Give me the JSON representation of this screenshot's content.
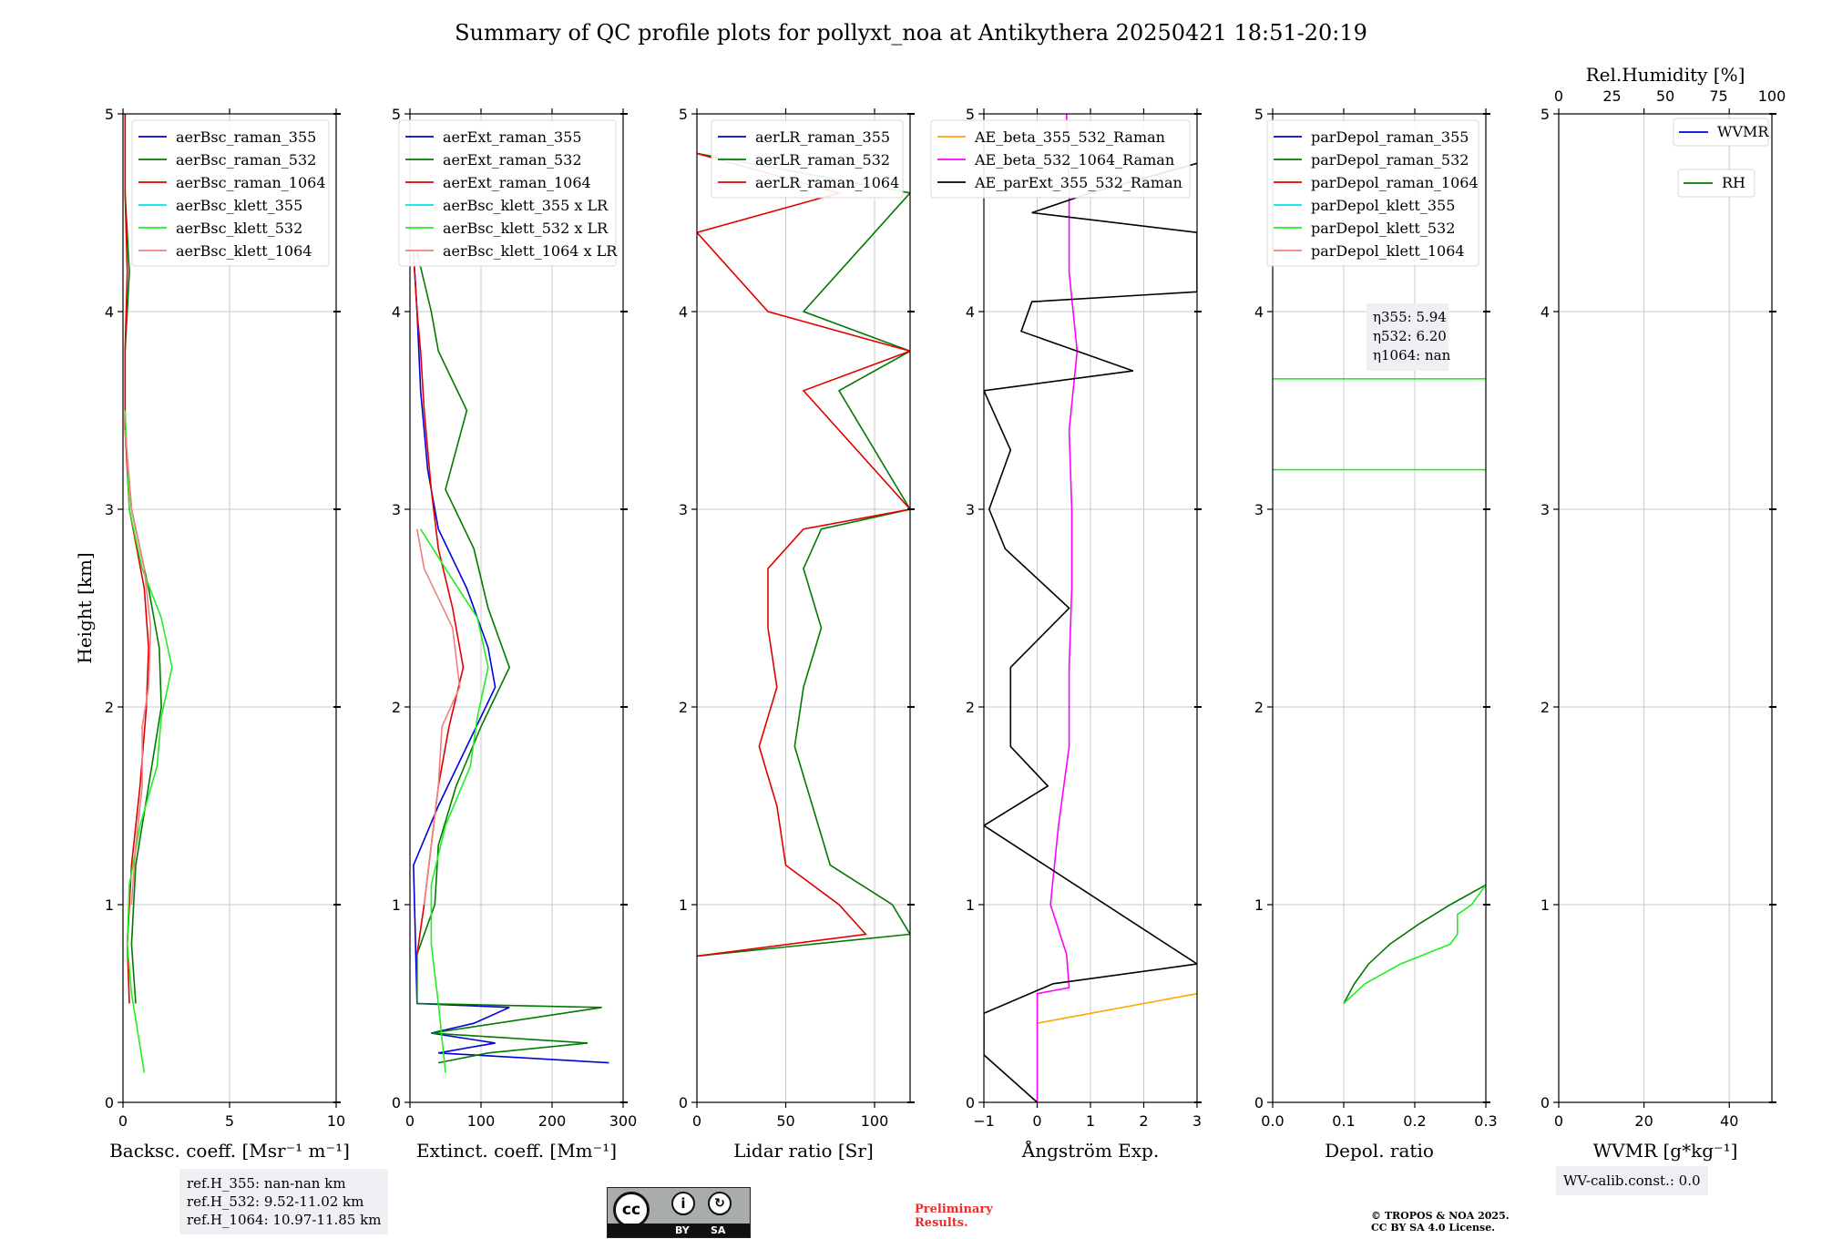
{
  "page": {
    "title": "Summary of QC profile plots for pollyxt_noa at Antikythera 20250421 18:51-20:19"
  },
  "notes": {
    "ref_h": [
      "ref.H_355: nan-nan km",
      "ref.H_532: 9.52-11.02 km",
      "ref.H_1064: 10.97-11.85 km"
    ],
    "wv_calib": "WV-calib.const.: 0.0",
    "license_by": "BY",
    "license_sa": "SA",
    "prelim_line1": "Preliminary",
    "prelim_line2": "Results.",
    "copyright_line1": "© TROPOS & NOA 2025.",
    "copyright_line2": "CC BY SA 4.0 License."
  },
  "colors": {
    "c355": "#0000dd",
    "c532": "#007a00",
    "c1064": "#e00000",
    "klett355": "#00e5e5",
    "klett532": "#22ee22",
    "klett1064": "#f08080",
    "ae_orange": "#ffa500",
    "ae_magenta": "#ff00ff",
    "ae_black": "#000000",
    "grid": "#c8c8c8"
  },
  "chart_data": [
    {
      "type": "line",
      "id": "backscatter",
      "xlabel": "Backsc. coeff. [Msr⁻¹ m⁻¹]",
      "ylabel": "Height [km]",
      "xlim": [
        0,
        10
      ],
      "ylim": [
        0,
        5
      ],
      "xticks": [
        0,
        5,
        10
      ],
      "yticks": [
        0,
        1,
        2,
        3,
        4,
        5
      ],
      "legend": "top-right",
      "series": [
        {
          "name": "aerBsc_raman_355",
          "color": "#0000dd",
          "y": [],
          "x": []
        },
        {
          "name": "aerBsc_raman_532",
          "color": "#007a00",
          "y": [
            0.5,
            0.8,
            1.2,
            1.6,
            2.0,
            2.3,
            2.6,
            3.0,
            3.4,
            3.8,
            4.2,
            4.6,
            5.0
          ],
          "x": [
            0.6,
            0.4,
            0.6,
            1.2,
            1.8,
            1.7,
            1.2,
            0.4,
            0.1,
            0.1,
            0.3,
            0.1,
            0.1
          ]
        },
        {
          "name": "aerBsc_raman_1064",
          "color": "#e00000",
          "y": [
            0.5,
            0.8,
            1.2,
            1.6,
            2.0,
            2.3,
            2.6,
            3.0,
            3.4,
            3.8,
            4.2,
            4.6,
            5.0
          ],
          "x": [
            0.3,
            0.2,
            0.4,
            0.8,
            1.1,
            1.2,
            1.0,
            0.3,
            0.1,
            0.1,
            0.2,
            0.1,
            0.1
          ]
        },
        {
          "name": "aerBsc_klett_355",
          "color": "#00e5e5",
          "y": [],
          "x": []
        },
        {
          "name": "aerBsc_klett_532",
          "color": "#22ee22",
          "y": [
            0.15,
            0.35,
            0.55,
            0.8,
            1.1,
            1.4,
            1.7,
            1.95,
            2.2,
            2.45,
            2.7,
            3.0,
            3.5
          ],
          "x": [
            1.0,
            0.7,
            0.4,
            0.2,
            0.3,
            0.8,
            1.6,
            1.8,
            2.3,
            1.8,
            0.9,
            0.3,
            0.1
          ]
        },
        {
          "name": "aerBsc_klett_1064",
          "color": "#f08080",
          "y": [
            1.0,
            1.3,
            1.6,
            1.9,
            2.1,
            2.4,
            2.7,
            3.0,
            3.4
          ],
          "x": [
            0.4,
            0.6,
            0.9,
            0.9,
            1.2,
            1.3,
            1.0,
            0.4,
            0.1
          ]
        }
      ]
    },
    {
      "type": "line",
      "id": "extinction",
      "xlabel": "Extinct. coeff. [Mm⁻¹]",
      "xlim": [
        0,
        300
      ],
      "ylim": [
        0,
        5
      ],
      "xticks": [
        0,
        100,
        200,
        300
      ],
      "yticks": [
        0,
        1,
        2,
        3,
        4,
        5
      ],
      "legend": "top-right",
      "series": [
        {
          "name": "aerExt_raman_355",
          "color": "#0000dd",
          "y": [
            0.2,
            0.25,
            0.3,
            0.35,
            0.4,
            0.48,
            0.5,
            1.2,
            1.5,
            1.8,
            2.1,
            2.3,
            2.6,
            2.9,
            3.2,
            3.6,
            4.0,
            4.3
          ],
          "x": [
            280,
            40,
            120,
            30,
            90,
            140,
            10,
            5,
            40,
            80,
            120,
            110,
            80,
            40,
            25,
            15,
            10,
            5
          ]
        },
        {
          "name": "aerExt_raman_532",
          "color": "#007a00",
          "y": [
            0.2,
            0.25,
            0.3,
            0.35,
            0.48,
            0.5,
            0.75,
            1.0,
            1.3,
            1.6,
            1.9,
            2.2,
            2.5,
            2.8,
            3.1,
            3.5,
            3.8,
            4.0,
            4.3
          ],
          "x": [
            40,
            110,
            250,
            30,
            270,
            10,
            10,
            35,
            40,
            65,
            100,
            140,
            110,
            90,
            50,
            80,
            40,
            30,
            10
          ]
        },
        {
          "name": "aerExt_raman_1064",
          "color": "#e00000",
          "y": [
            0.75,
            1.0,
            1.3,
            1.6,
            1.9,
            2.2,
            2.5,
            2.8,
            3.1,
            3.5,
            3.8,
            4.0,
            4.3
          ],
          "x": [
            10,
            20,
            30,
            40,
            55,
            75,
            60,
            40,
            30,
            20,
            15,
            10,
            5
          ]
        },
        {
          "name": "aerBsc_klett_355 x LR",
          "color": "#00e5e5",
          "y": [],
          "x": []
        },
        {
          "name": "aerBsc_klett_532 x LR",
          "color": "#22ee22",
          "y": [
            0.15,
            0.5,
            0.8,
            1.1,
            1.4,
            1.7,
            1.95,
            2.2,
            2.45,
            2.7,
            2.9
          ],
          "x": [
            50,
            40,
            30,
            30,
            50,
            85,
            95,
            110,
            95,
            50,
            15
          ]
        },
        {
          "name": "aerBsc_klett_1064 x LR",
          "color": "#f08080",
          "y": [
            1.0,
            1.3,
            1.6,
            1.9,
            2.1,
            2.4,
            2.7,
            2.9
          ],
          "x": [
            20,
            30,
            40,
            45,
            70,
            60,
            20,
            10
          ]
        }
      ]
    },
    {
      "type": "line",
      "id": "lidar_ratio",
      "xlabel": "Lidar ratio [Sr]",
      "xlim": [
        0,
        120
      ],
      "ylim": [
        0,
        5
      ],
      "xticks": [
        0,
        50,
        100
      ],
      "yticks": [
        0,
        1,
        2,
        3,
        4,
        5
      ],
      "legend": "top-right",
      "series": [
        {
          "name": "aerLR_raman_355",
          "color": "#0000dd",
          "y": [],
          "x": []
        },
        {
          "name": "aerLR_raman_532",
          "color": "#007a00",
          "y": [
            0.74,
            0.85,
            1.0,
            1.2,
            1.5,
            1.8,
            2.1,
            2.4,
            2.7,
            2.9,
            3.0,
            3.6,
            3.8,
            4.0,
            4.4,
            4.6,
            4.8
          ],
          "x": [
            0,
            120,
            110,
            75,
            65,
            55,
            60,
            70,
            60,
            70,
            120,
            80,
            120,
            60,
            100,
            120,
            0
          ]
        },
        {
          "name": "aerLR_raman_1064",
          "color": "#e00000",
          "y": [
            0.74,
            0.85,
            1.0,
            1.2,
            1.5,
            1.8,
            2.1,
            2.4,
            2.7,
            2.9,
            3.0,
            3.6,
            3.8,
            4.0,
            4.4,
            4.6,
            4.8
          ],
          "x": [
            0,
            95,
            80,
            50,
            45,
            35,
            45,
            40,
            40,
            60,
            120,
            60,
            120,
            40,
            0,
            80,
            0
          ]
        }
      ]
    },
    {
      "type": "line",
      "id": "angstrom",
      "xlabel": "Ångström Exp.",
      "xlim": [
        -1,
        3
      ],
      "ylim": [
        0,
        5
      ],
      "xticks": [
        -1,
        0,
        1,
        2,
        3
      ],
      "yticks": [
        0,
        1,
        2,
        3,
        4,
        5
      ],
      "legend": "top-right",
      "series": [
        {
          "name": "AE_beta_355_532_Raman",
          "color": "#ffa500",
          "y": [
            0.4,
            0.45,
            0.5,
            0.55
          ],
          "x": [
            0.0,
            1.0,
            2.0,
            3.0
          ]
        },
        {
          "name": "AE_beta_532_1064_Raman",
          "color": "#ff00ff",
          "y": [
            0.0,
            0.55,
            0.58,
            0.75,
            1.0,
            1.4,
            1.8,
            2.2,
            2.6,
            3.0,
            3.4,
            3.8,
            4.2,
            4.6,
            5.0
          ],
          "x": [
            0.0,
            0.0,
            0.6,
            0.55,
            0.25,
            0.4,
            0.6,
            0.6,
            0.65,
            0.65,
            0.6,
            0.75,
            0.6,
            0.6,
            0.55
          ]
        },
        {
          "name": "AE_parExt_355_532_Raman",
          "color": "#000000",
          "y": [
            0.0,
            0.24,
            0.45,
            0.6,
            0.7,
            1.4,
            1.6,
            1.8,
            2.2,
            2.5,
            2.8,
            3.0,
            3.3,
            3.6,
            3.7,
            3.9,
            4.05,
            4.1,
            4.4,
            4.5,
            4.6,
            4.75
          ],
          "x": [
            0.0,
            -1.0,
            -1.0,
            0.3,
            3.0,
            -1.0,
            0.2,
            -0.5,
            -0.5,
            0.6,
            -0.6,
            -0.9,
            -0.5,
            -1.0,
            1.8,
            -0.3,
            -0.1,
            3.0,
            3.0,
            -0.1,
            1.0,
            3.0
          ]
        }
      ]
    },
    {
      "type": "line",
      "id": "depol",
      "xlabel": "Depol. ratio",
      "xlim": [
        0.0,
        0.3
      ],
      "ylim": [
        0,
        5
      ],
      "xticks": [
        0.0,
        0.1,
        0.2,
        0.3
      ],
      "yticks": [
        0,
        1,
        2,
        3,
        4,
        5
      ],
      "legend": "top-right",
      "annotation": [
        "η355: 5.94",
        "η532: 6.20",
        "η1064: nan"
      ],
      "series": [
        {
          "name": "parDepol_raman_355",
          "color": "#0000dd",
          "y": [],
          "x": []
        },
        {
          "name": "parDepol_raman_532",
          "color": "#007a00",
          "y": [
            0.5,
            0.6,
            0.7,
            0.8,
            0.9,
            1.0,
            1.1
          ],
          "x": [
            0.1,
            0.115,
            0.135,
            0.165,
            0.205,
            0.25,
            0.3
          ]
        },
        {
          "name": "parDepol_raman_1064",
          "color": "#e00000",
          "y": [],
          "x": []
        },
        {
          "name": "parDepol_klett_355",
          "color": "#00e5e5",
          "y": [],
          "x": []
        },
        {
          "name": "parDepol_klett_532",
          "color": "#22ee22",
          "y": [
            0.5,
            0.6,
            0.7,
            0.8,
            0.85,
            0.95,
            1.0,
            1.1
          ],
          "x": [
            0.1,
            0.13,
            0.18,
            0.25,
            0.26,
            0.26,
            0.28,
            0.3
          ]
        },
        {
          "name": "parDepol_klett_1064",
          "color": "#f08080",
          "y": [],
          "x": []
        }
      ],
      "hlines": [
        {
          "y": 3.66,
          "color": "#22ee22"
        },
        {
          "y": 3.2,
          "color": "#22ee22"
        }
      ]
    },
    {
      "type": "line",
      "id": "wvmr",
      "xlabel": "WVMR [g*kg⁻¹]",
      "top_xlabel": "Rel.Humidity [%]",
      "xlim": [
        0,
        50
      ],
      "ylim": [
        0,
        5
      ],
      "xticks": [
        0,
        20,
        40
      ],
      "top_xticks": [
        0,
        25,
        50,
        75,
        100
      ],
      "yticks": [
        0,
        1,
        2,
        3,
        4,
        5
      ],
      "legend": "top-right",
      "series": [
        {
          "name": "WVMR",
          "color": "#0000dd",
          "y": [],
          "x": []
        },
        {
          "name": "RH",
          "color": "#007a00",
          "y": [],
          "x": []
        }
      ]
    }
  ]
}
